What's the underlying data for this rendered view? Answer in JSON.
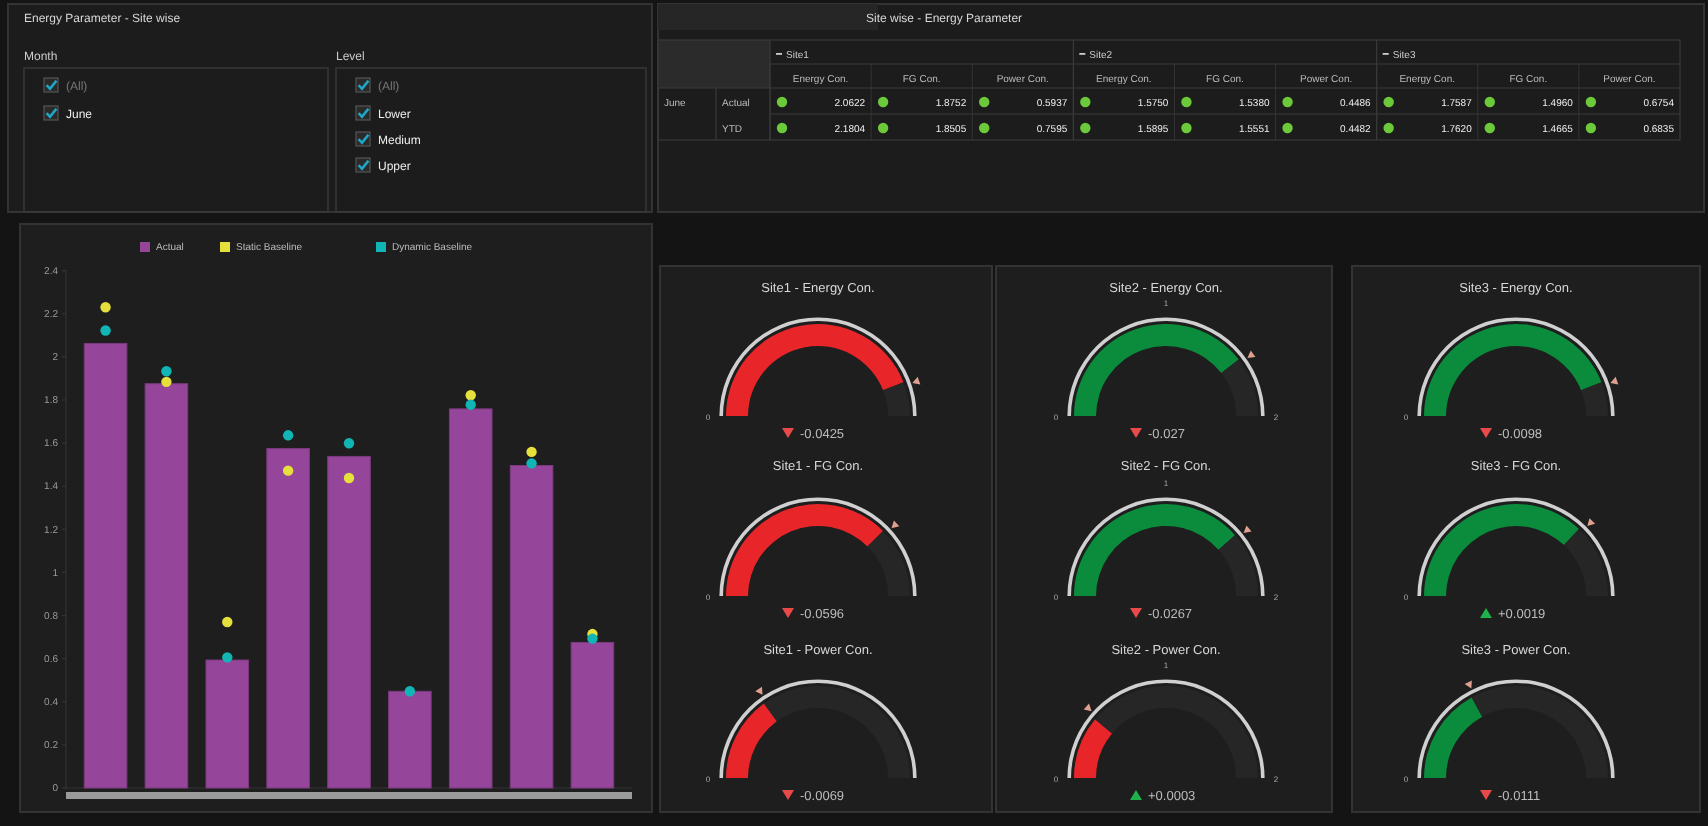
{
  "chart_data": [
    {
      "type": "other",
      "title": "Energy Parameter - Site wise",
      "annotations": [
        "Month",
        "(All)",
        "June",
        "Level",
        "(All)",
        "Lower",
        "Medium",
        "Upper"
      ]
    },
    {
      "type": "other",
      "title": "Site wise - Energy Parameter",
      "annotations": [
        "Site1",
        "Site2",
        "Site3",
        "June"
      ],
      "categories": [
        "Energy Con.",
        "FG Con.",
        "Power Con.",
        "Energy Con.",
        "FG Con.",
        "Power Con.",
        "Energy Con.",
        "FG Con.",
        "Power Con."
      ],
      "series": [
        {
          "name": "Actual",
          "values": [
            2.0622,
            1.8752,
            0.5937,
            1.575,
            1.538,
            0.4486,
            1.7587,
            1.496,
            0.6754
          ],
          "value_labels": [
            "2.0622",
            "1.8752",
            "0.5937",
            "1.5750",
            "1.5380",
            "0.4486",
            "1.7587",
            "1.4960",
            "0.6754"
          ]
        },
        {
          "name": "YTD",
          "values": [
            2.1804,
            1.8505,
            0.7595,
            1.5895,
            1.5551,
            0.4482,
            1.762,
            1.4665,
            0.6835
          ],
          "value_labels": [
            "2.1804",
            "1.8505",
            "0.7595",
            "1.5895",
            "1.5551",
            "0.4482",
            "1.7620",
            "1.4665",
            "0.6835"
          ]
        }
      ]
    },
    {
      "type": "bar",
      "categories": [
        null,
        null,
        null,
        null,
        null,
        null,
        null,
        null,
        null
      ],
      "ylim": [
        0,
        2.4
      ],
      "yticks": [
        0,
        0.2,
        0.4,
        0.6,
        0.8,
        1,
        1.2,
        1.4,
        1.6,
        1.8,
        2,
        2.2,
        2.4
      ],
      "legend": "top",
      "marker": "circle",
      "grid": false,
      "series": [
        {
          "name": "Actual",
          "type": "bar",
          "color": "#96469a",
          "values": [
            2.0622,
            1.8752,
            0.5937,
            1.575,
            1.538,
            0.4486,
            1.7587,
            1.496,
            0.6754
          ]
        },
        {
          "name": "Static Baseline",
          "type": "scatter",
          "color": "#e6e03c",
          "values": [
            2.23,
            1.884,
            0.77,
            1.472,
            1.438,
            null,
            1.822,
            1.559,
            0.714
          ]
        },
        {
          "name": "Dynamic Baseline",
          "type": "scatter",
          "color": "#12b5b5",
          "values": [
            2.122,
            1.933,
            0.606,
            1.636,
            1.599,
            0.449,
            1.778,
            1.506,
            0.693
          ]
        }
      ]
    },
    {
      "type": "donut",
      "title": "Site1 - Energy Con.",
      "categories": [
        null,
        null
      ],
      "values": [
        88,
        12
      ],
      "colors": [
        "#e8262a",
        "#262626"
      ],
      "annotations": [
        "0",
        "-0.0425"
      ]
    },
    {
      "type": "donut",
      "title": "Site2 - Energy Con.",
      "categories": [
        null,
        null
      ],
      "values": [
        79,
        21
      ],
      "colors": [
        "#0a8c3c",
        "#262626"
      ],
      "annotations": [
        "0",
        "1",
        "2",
        "-0.027"
      ]
    },
    {
      "type": "donut",
      "title": "Site3 - Energy Con.",
      "categories": [
        null,
        null
      ],
      "values": [
        88,
        12
      ],
      "colors": [
        "#0a8c3c",
        "#262626"
      ],
      "annotations": [
        "0",
        "-0.0098"
      ]
    },
    {
      "type": "donut",
      "title": "Site1 - FG Con.",
      "categories": [
        null,
        null
      ],
      "values": [
        75,
        25
      ],
      "colors": [
        "#e8262a",
        "#262626"
      ],
      "annotations": [
        "0",
        "-0.0596"
      ]
    },
    {
      "type": "donut",
      "title": "Site2 - FG Con.",
      "categories": [
        null,
        null
      ],
      "values": [
        77,
        23
      ],
      "colors": [
        "#0a8c3c",
        "#262626"
      ],
      "annotations": [
        "0",
        "1",
        "2",
        "-0.0267"
      ]
    },
    {
      "type": "donut",
      "title": "Site3 - FG Con.",
      "categories": [
        null,
        null
      ],
      "values": [
        74,
        26
      ],
      "colors": [
        "#0a8c3c",
        "#262626"
      ],
      "annotations": [
        "0",
        "+0.0019"
      ]
    },
    {
      "type": "donut",
      "title": "Site1 - Power Con.",
      "categories": [
        null,
        null
      ],
      "values": [
        30,
        70
      ],
      "colors": [
        "#e8262a",
        "#262626"
      ],
      "annotations": [
        "0",
        "-0.0069"
      ]
    },
    {
      "type": "donut",
      "title": "Site2 - Power Con.",
      "categories": [
        null,
        null
      ],
      "values": [
        22,
        78
      ],
      "colors": [
        "#e8262a",
        "#262626"
      ],
      "annotations": [
        "0",
        "1",
        "2",
        "+0.0003"
      ]
    },
    {
      "type": "donut",
      "title": "Site3 - Power Con.",
      "categories": [
        null,
        null
      ],
      "values": [
        34,
        66
      ],
      "colors": [
        "#0a8c3c",
        "#262626"
      ],
      "annotations": [
        "0",
        "-0.0111"
      ]
    }
  ]
}
